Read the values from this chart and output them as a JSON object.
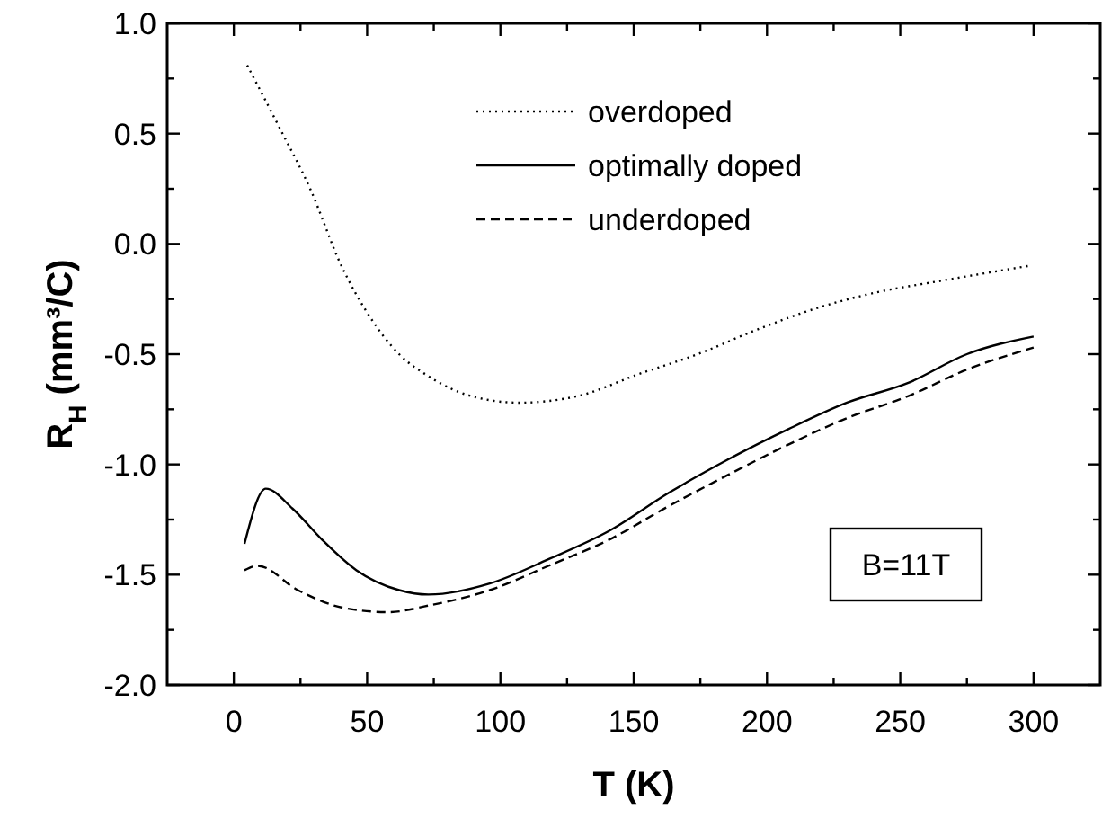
{
  "chart_data": {
    "type": "line",
    "xlabel": "T (K)",
    "ylabel": "R$_{H}$  (mm³/C)",
    "xlim": [
      -25,
      325
    ],
    "ylim": [
      -2.0,
      1.0
    ],
    "xticks": [
      0,
      {
        "value": 25,
        "label": null
      },
      50,
      {
        "value": 75,
        "label": null
      },
      100,
      {
        "value": 125,
        "label": null
      },
      150,
      {
        "value": 175,
        "label": null
      },
      200,
      {
        "value": 225,
        "label": null
      },
      250,
      {
        "value": 275,
        "label": null
      },
      300
    ],
    "yticks": [
      {
        "value": -2.0,
        "label": "-2.0"
      },
      {
        "value": -1.75,
        "label": null
      },
      {
        "value": -1.5,
        "label": "-1.5"
      },
      {
        "value": -1.25,
        "label": null
      },
      {
        "value": -1.0,
        "label": "-1.0"
      },
      {
        "value": -0.75,
        "label": null
      },
      {
        "value": -0.5,
        "label": "-0.5"
      },
      {
        "value": -0.25,
        "label": null
      },
      {
        "value": 0.0,
        "label": "0.0"
      },
      {
        "value": 0.25,
        "label": null
      },
      {
        "value": 0.5,
        "label": "0.5"
      },
      {
        "value": 0.75,
        "label": null
      },
      {
        "value": 1.0,
        "label": "1.0"
      }
    ],
    "legend": "top",
    "grid": false,
    "annotations": [
      "B=11T"
    ],
    "series": [
      {
        "name": "overdoped",
        "color": "#000000",
        "line_style": "dotted",
        "x": [
          5,
          17,
          29,
          40,
          51,
          62,
          73,
          89,
          107,
          129,
          152,
          174,
          196,
          219,
          241,
          264,
          298
        ],
        "values": [
          0.81,
          0.53,
          0.24,
          -0.09,
          -0.33,
          -0.5,
          -0.6,
          -0.69,
          -0.72,
          -0.69,
          -0.59,
          -0.5,
          -0.39,
          -0.29,
          -0.22,
          -0.17,
          -0.1
        ]
      },
      {
        "name": "optimally doped",
        "color": "#000000",
        "line_style": "solid",
        "x": [
          4,
          12,
          22,
          33,
          46,
          62,
          73,
          96,
          118,
          141,
          163,
          185,
          208,
          230,
          253,
          275,
          300
        ],
        "values": [
          -1.36,
          -1.11,
          -1.2,
          -1.34,
          -1.48,
          -1.57,
          -1.59,
          -1.54,
          -1.43,
          -1.3,
          -1.13,
          -0.98,
          -0.84,
          -0.72,
          -0.63,
          -0.5,
          -0.42
        ]
      },
      {
        "name": "underdoped",
        "color": "#000000",
        "line_style": "dashed",
        "x": [
          4,
          9,
          24,
          41,
          58,
          73,
          96,
          118,
          141,
          163,
          185,
          208,
          230,
          253,
          275,
          300
        ],
        "values": [
          -1.48,
          -1.46,
          -1.57,
          -1.65,
          -1.67,
          -1.64,
          -1.57,
          -1.46,
          -1.34,
          -1.19,
          -1.05,
          -0.91,
          -0.79,
          -0.69,
          -0.57,
          -0.47
        ]
      }
    ]
  }
}
